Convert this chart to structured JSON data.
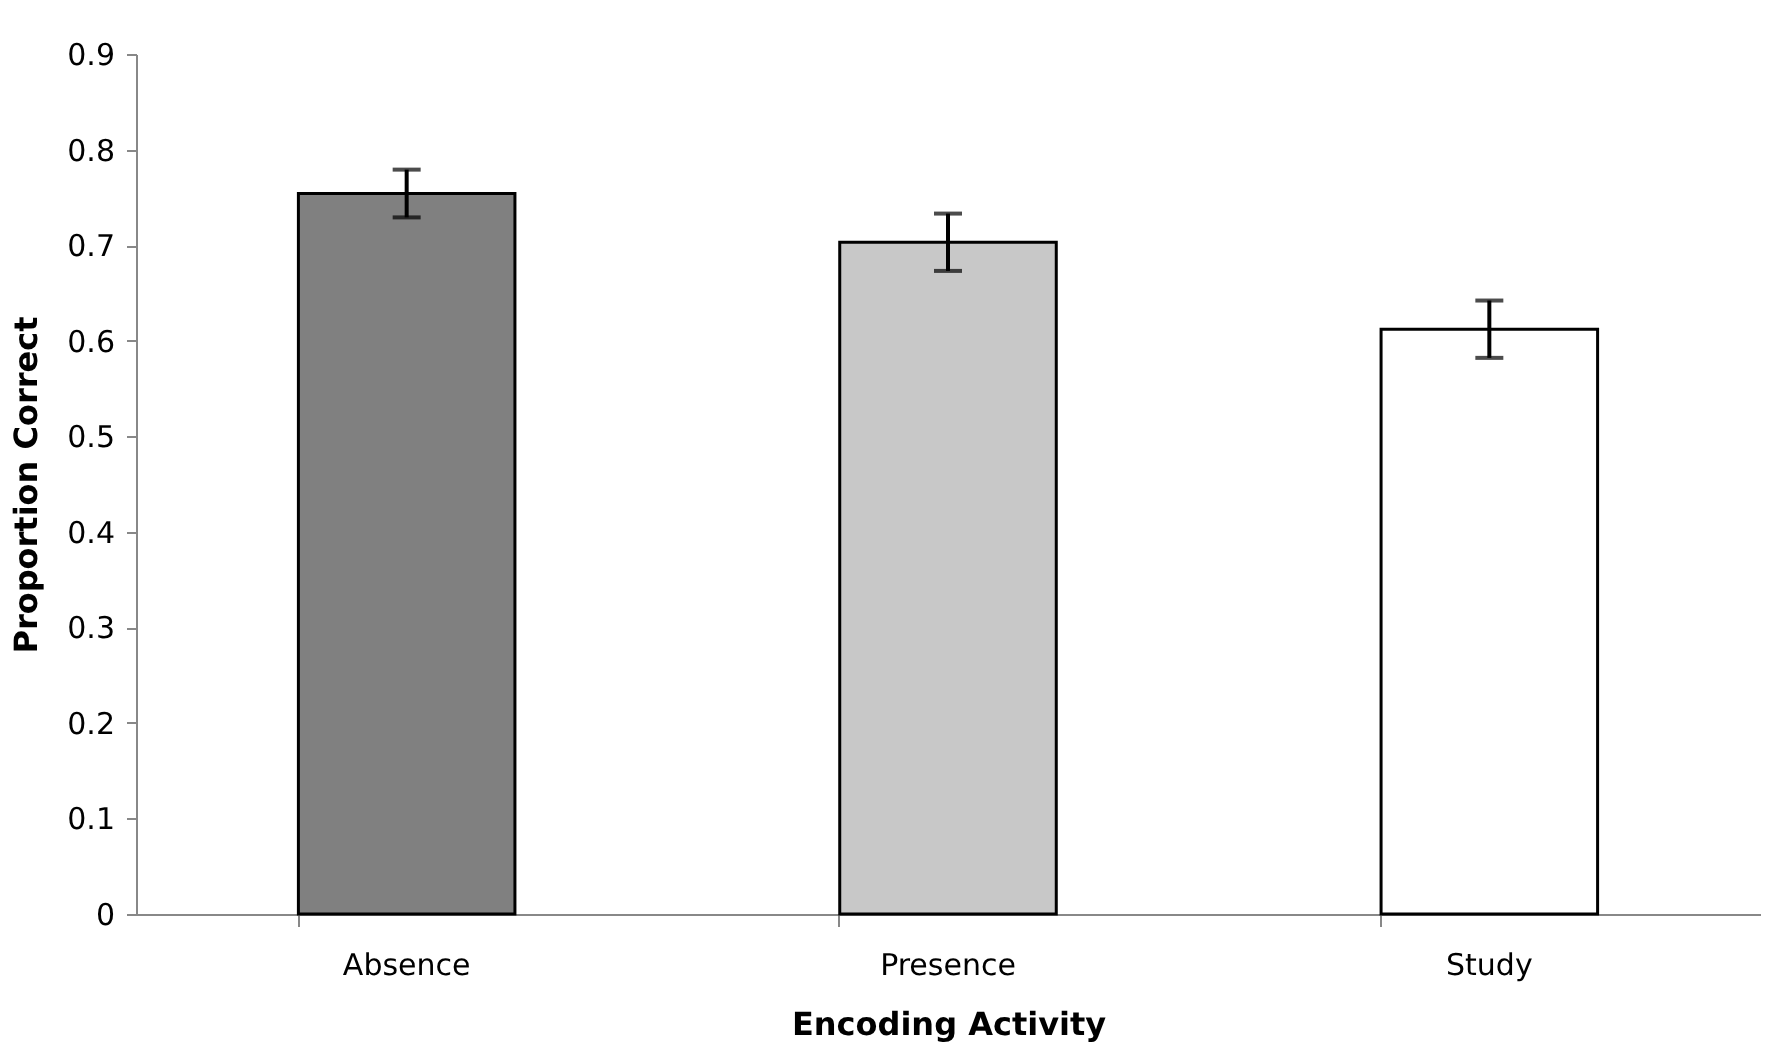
{
  "chart_data": {
    "type": "bar",
    "xlabel": "Encoding Activity",
    "ylabel": "Proportion Correct",
    "categories": [
      "Absence",
      "Presence",
      "Study"
    ],
    "values": [
      0.754,
      0.703,
      0.612
    ],
    "errors": [
      0.025,
      0.03,
      0.03
    ],
    "colors": [
      "#808080",
      "#c8c8c8",
      "#ffffff"
    ],
    "ylim": [
      0,
      0.9
    ],
    "yticks": [
      0,
      0.1,
      0.2,
      0.3,
      0.4,
      0.5,
      0.6,
      0.7,
      0.8,
      0.9
    ],
    "grid": false
  }
}
